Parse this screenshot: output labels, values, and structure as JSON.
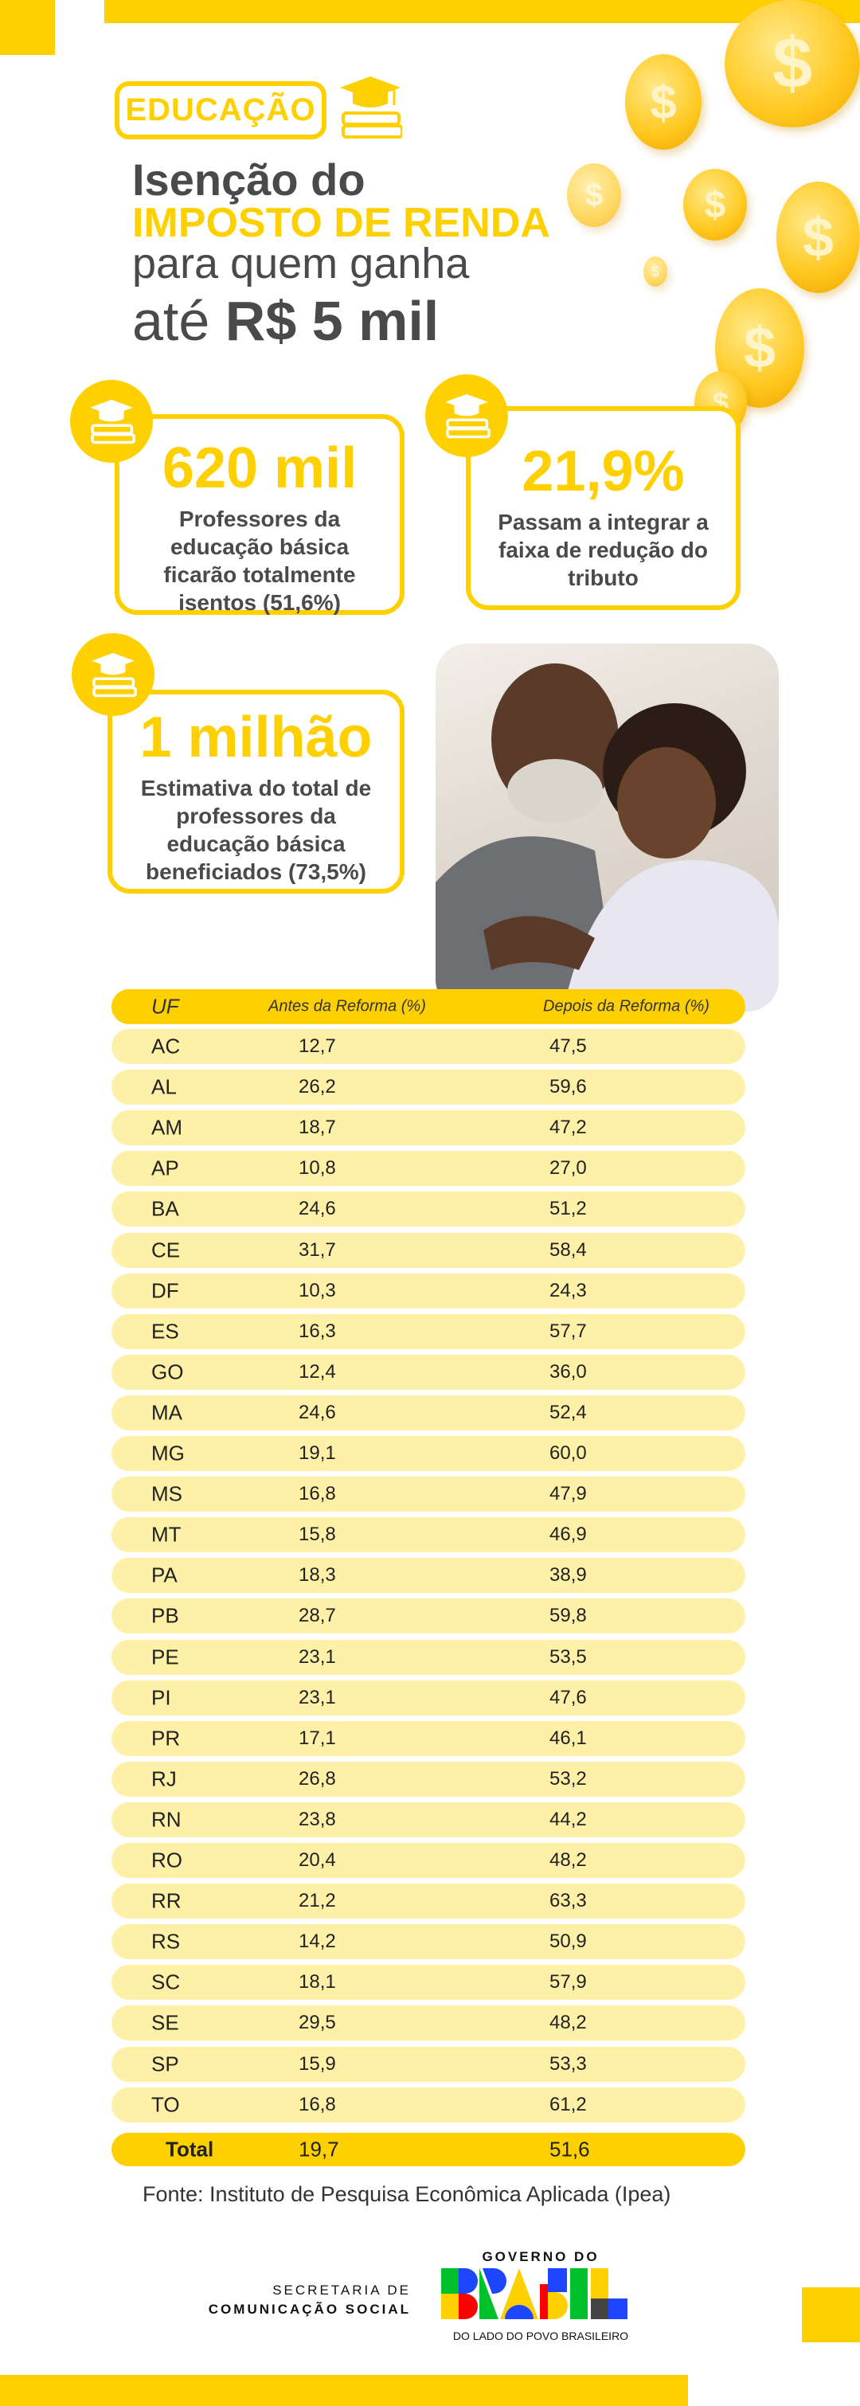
{
  "header": {
    "category_badge": "EDUCAÇÃO",
    "title_line1": "Isenção do",
    "title_line2": "IMPOSTO DE RENDA",
    "title_line3": "para quem ganha",
    "title_line4_prefix": "até",
    "title_line4_bold": "R$ 5 mil"
  },
  "stats": [
    {
      "value": "620 mil",
      "text": "Professores da educação básica ficarão totalmente isentos (51,6%)"
    },
    {
      "value": "21,9%",
      "text": "Passam a integrar a faixa de redução do tributo"
    },
    {
      "value": "1 milhão",
      "text": "Estimativa do total de professores da educação básica beneficiados (73,5%)"
    }
  ],
  "table": {
    "columns": [
      "UF",
      "Antes da Reforma (%)",
      "Depois da Reforma (%)"
    ],
    "rows": [
      [
        "AC",
        "12,7",
        "47,5"
      ],
      [
        "AL",
        "26,2",
        "59,6"
      ],
      [
        "AM",
        "18,7",
        "47,2"
      ],
      [
        "AP",
        "10,8",
        "27,0"
      ],
      [
        "BA",
        "24,6",
        "51,2"
      ],
      [
        "CE",
        "31,7",
        "58,4"
      ],
      [
        "DF",
        "10,3",
        "24,3"
      ],
      [
        "ES",
        "16,3",
        "57,7"
      ],
      [
        "GO",
        "12,4",
        "36,0"
      ],
      [
        "MA",
        "24,6",
        "52,4"
      ],
      [
        "MG",
        "19,1",
        "60,0"
      ],
      [
        "MS",
        "16,8",
        "47,9"
      ],
      [
        "MT",
        "15,8",
        "46,9"
      ],
      [
        "PA",
        "18,3",
        "38,9"
      ],
      [
        "PB",
        "28,7",
        "59,8"
      ],
      [
        "PE",
        "23,1",
        "53,5"
      ],
      [
        "PI",
        "23,1",
        "47,6"
      ],
      [
        "PR",
        "17,1",
        "46,1"
      ],
      [
        "RJ",
        "26,8",
        "53,2"
      ],
      [
        "RN",
        "23,8",
        "44,2"
      ],
      [
        "RO",
        "20,4",
        "48,2"
      ],
      [
        "RR",
        "21,2",
        "63,3"
      ],
      [
        "RS",
        "14,2",
        "50,9"
      ],
      [
        "SC",
        "18,1",
        "57,9"
      ],
      [
        "SE",
        "29,5",
        "48,2"
      ],
      [
        "SP",
        "15,9",
        "53,3"
      ],
      [
        "TO",
        "16,8",
        "61,2"
      ]
    ],
    "total": [
      "Total",
      "19,7",
      "51,6"
    ]
  },
  "source": "Fonte: Instituto de Pesquisa Econômica Aplicada (Ipea)",
  "footer": {
    "secretaria_line1": "SECRETARIA DE",
    "secretaria_line2": "COMUNICAÇÃO SOCIAL",
    "gov_top": "GOVERNO DO",
    "gov_logo": "BRASIL",
    "gov_slogan": "DO LADO DO POVO BRASILEIRO"
  },
  "colors": {
    "accent": "#FFD000",
    "row_bg": "#FFF0A8",
    "text": "#4a4a4a"
  }
}
